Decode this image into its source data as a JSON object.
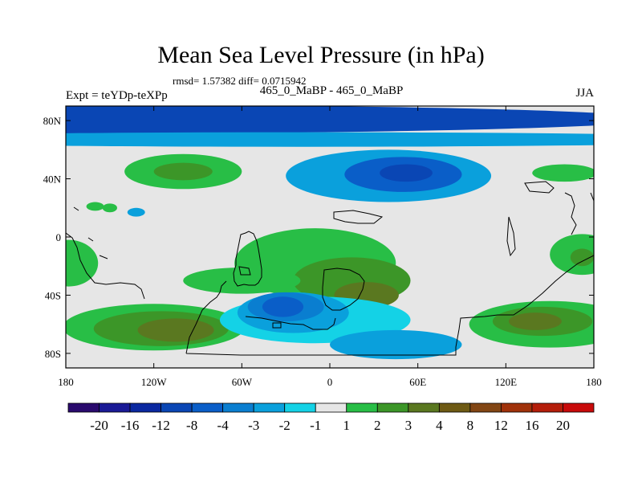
{
  "chart_data": {
    "type": "heatmap",
    "title": "Mean Sea Level Pressure (in hPa)",
    "stats_text": "rmsd= 1.57382 diff= 0.0715942",
    "experiment_label": "Expt = teYDp-teXPp",
    "comparison_label": "465_0_MaBP - 465_0_MaBP",
    "season_label": "JJA",
    "xlim": [
      -180,
      180
    ],
    "ylim": [
      -90,
      90
    ],
    "x_ticks": [
      {
        "value": -180,
        "label": "180"
      },
      {
        "value": -120,
        "label": "120W"
      },
      {
        "value": -60,
        "label": "60W"
      },
      {
        "value": 0,
        "label": "0"
      },
      {
        "value": 60,
        "label": "60E"
      },
      {
        "value": 120,
        "label": "120E"
      },
      {
        "value": 180,
        "label": "180"
      }
    ],
    "y_ticks": [
      {
        "value": 80,
        "label": "80N"
      },
      {
        "value": 40,
        "label": "40N"
      },
      {
        "value": 0,
        "label": "0"
      },
      {
        "value": -40,
        "label": "40S"
      },
      {
        "value": -80,
        "label": "80S"
      }
    ],
    "colorbar": {
      "colors": [
        "#2a0a6e",
        "#1a1a96",
        "#0a28a0",
        "#0a46b4",
        "#0a5ec8",
        "#0a7ed0",
        "#0aa0dc",
        "#14d2e6",
        "#e6e6e6",
        "#28be46",
        "#3c9628",
        "#5a7820",
        "#6e5a14",
        "#824614",
        "#a0320a",
        "#b41e0a",
        "#c80a0a"
      ],
      "labels": [
        "-20",
        "-16",
        "-12",
        "-8",
        "-4",
        "-3",
        "-2",
        "-1",
        "1",
        "2",
        "3",
        "4",
        "8",
        "12",
        "16",
        "20"
      ]
    },
    "regions": [
      {
        "name": "arctic-band",
        "level": -8,
        "lon": -180,
        "lat": 81,
        "rx": 400,
        "ry": 10
      },
      {
        "name": "arctic-fringe",
        "level": -2,
        "lon": -20,
        "lat": 67,
        "rx": 320,
        "ry": 5
      },
      {
        "name": "n-atlantic-low",
        "level": -2,
        "lon": 40,
        "lat": 42,
        "rx": 70,
        "ry": 18
      },
      {
        "name": "n-atlantic-low-mid",
        "level": -4,
        "lon": 50,
        "lat": 43,
        "rx": 40,
        "ry": 12
      },
      {
        "name": "n-atlantic-low-core",
        "level": -8,
        "lon": 52,
        "lat": 44,
        "rx": 18,
        "ry": 6
      },
      {
        "name": "n-pacific-high",
        "level": 2,
        "lon": -100,
        "lat": 45,
        "rx": 40,
        "ry": 12
      },
      {
        "name": "n-pacific-high-core",
        "level": 3,
        "lon": -100,
        "lat": 45,
        "rx": 20,
        "ry": 6
      },
      {
        "name": "ne-high",
        "level": 2,
        "lon": 160,
        "lat": 44,
        "rx": 22,
        "ry": 6
      },
      {
        "name": "trop-w-blob",
        "level": -2,
        "lon": -132,
        "lat": 17,
        "rx": 6,
        "ry": 3
      },
      {
        "name": "trop-green-1",
        "level": 2,
        "lon": -160,
        "lat": 21,
        "rx": 6,
        "ry": 3
      },
      {
        "name": "trop-green-2",
        "level": 2,
        "lon": -150,
        "lat": 20,
        "rx": 5,
        "ry": 3
      },
      {
        "name": "e-eq-high",
        "level": 2,
        "lon": 172,
        "lat": -12,
        "rx": 22,
        "ry": 14
      },
      {
        "name": "e-eq-high-core",
        "level": 3,
        "lon": 172,
        "lat": -14,
        "rx": 8,
        "ry": 6
      },
      {
        "name": "w-eq-high",
        "level": 2,
        "lon": -178,
        "lat": -18,
        "rx": 20,
        "ry": 16
      },
      {
        "name": "c-tropic-high",
        "level": 2,
        "lon": -10,
        "lat": -18,
        "rx": 55,
        "ry": 24
      },
      {
        "name": "c-tropic-high-mid",
        "level": 3,
        "lon": 15,
        "lat": -30,
        "rx": 40,
        "ry": 16
      },
      {
        "name": "c-tropic-high-core",
        "level": 4,
        "lon": 25,
        "lat": -40,
        "rx": 22,
        "ry": 9
      },
      {
        "name": "w-tropic-band",
        "level": 2,
        "lon": -60,
        "lat": -30,
        "rx": 40,
        "ry": 9
      },
      {
        "name": "sw-high",
        "level": 2,
        "lon": -120,
        "lat": -62,
        "rx": 62,
        "ry": 16
      },
      {
        "name": "sw-high-mid",
        "level": 3,
        "lon": -115,
        "lat": -63,
        "rx": 46,
        "ry": 12
      },
      {
        "name": "sw-high-core",
        "level": 4,
        "lon": -105,
        "lat": -64,
        "rx": 26,
        "ry": 8
      },
      {
        "name": "se-high",
        "level": 2,
        "lon": 150,
        "lat": -60,
        "rx": 55,
        "ry": 16
      },
      {
        "name": "se-high-mid",
        "level": 3,
        "lon": 145,
        "lat": -58,
        "rx": 34,
        "ry": 10
      },
      {
        "name": "se-high-core",
        "level": 4,
        "lon": 140,
        "lat": -58,
        "rx": 18,
        "ry": 6
      },
      {
        "name": "s-atlantic-low",
        "level": -1,
        "lon": -10,
        "lat": -57,
        "rx": 65,
        "ry": 16
      },
      {
        "name": "s-atlantic-low-mid",
        "level": -2,
        "lon": -25,
        "lat": -52,
        "rx": 38,
        "ry": 14
      },
      {
        "name": "s-atlantic-low-core",
        "level": -3,
        "lon": -30,
        "lat": -48,
        "rx": 26,
        "ry": 10
      },
      {
        "name": "s-atlantic-low-deep",
        "level": -4,
        "lon": -32,
        "lat": -48,
        "rx": 14,
        "ry": 7
      },
      {
        "name": "polar-low-band",
        "level": -2,
        "lon": 45,
        "lat": -74,
        "rx": 45,
        "ry": 10
      }
    ]
  }
}
